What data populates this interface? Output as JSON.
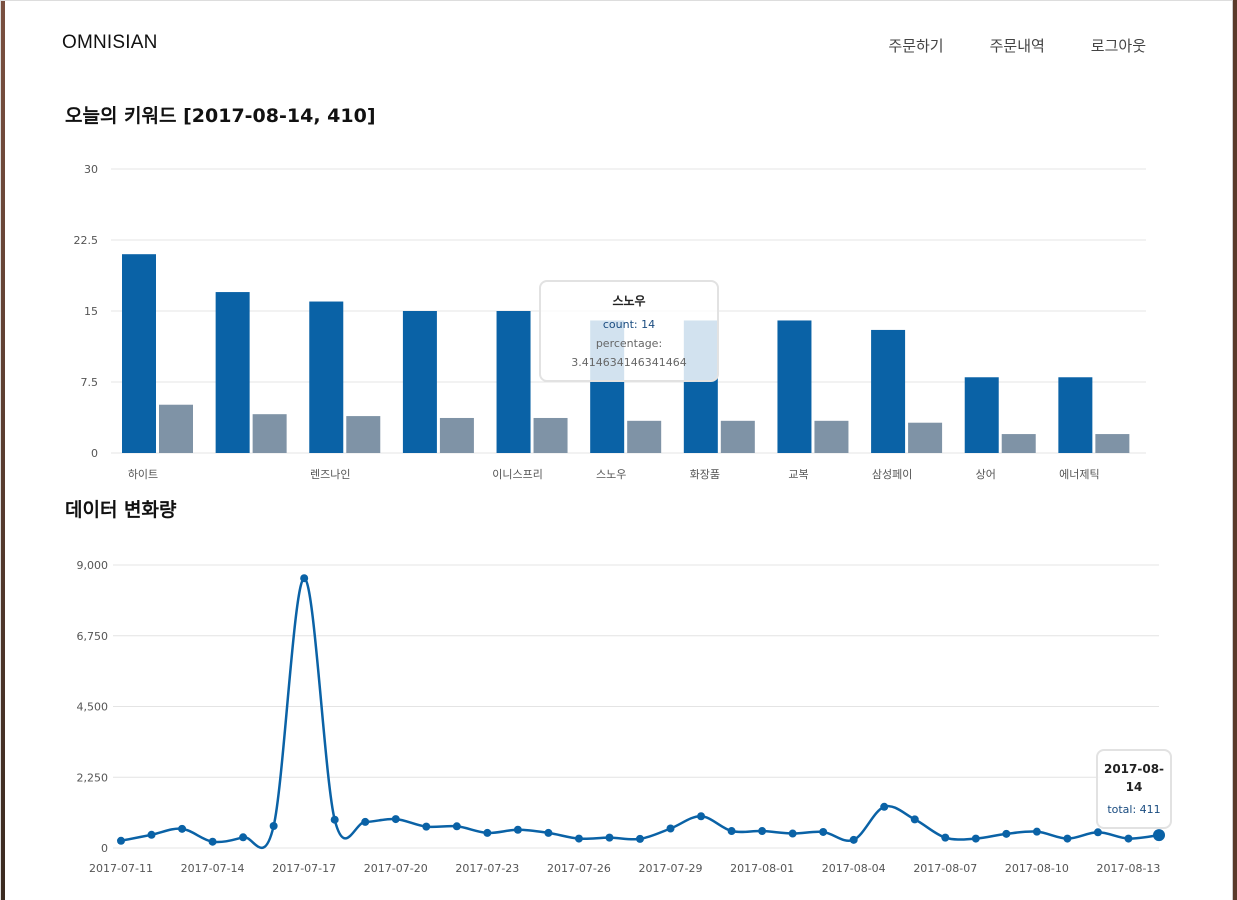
{
  "header": {
    "brand": "OMNISIAN",
    "nav": [
      "주문하기",
      "주문내역",
      "로그아웃"
    ]
  },
  "keywords": {
    "title": "오늘의 키워드 [2017-08-14, 410]",
    "tooltip": {
      "title": "스노우",
      "count": "count: 14",
      "percentage": "percentage: 3.414634146341464"
    }
  },
  "volume": {
    "title": "데이터 변화량",
    "tooltip": {
      "title": "2017-08-14",
      "total": "total: 411"
    }
  },
  "colors": {
    "primary": "#0a62a6",
    "secondary": "#7f93a6",
    "grid": "#e4e4e4"
  },
  "chart_data": [
    {
      "type": "bar",
      "categories": [
        "하이트",
        "",
        "렌즈나인",
        "",
        "이니스프리",
        "스노우",
        "화장품",
        "교복",
        "삼성페이",
        "상어",
        "에너제틱"
      ],
      "series": [
        {
          "values": [
            21,
            17,
            16,
            15,
            15,
            14,
            14,
            14,
            13,
            8,
            8
          ]
        },
        {
          "values": [
            5.1,
            4.1,
            3.9,
            3.7,
            3.7,
            3.4,
            3.4,
            3.4,
            3.2,
            2.0,
            2.0
          ]
        }
      ],
      "yticks": [
        "0",
        "7.5",
        "15",
        "22.5",
        "30"
      ],
      "ylim": [
        0,
        30
      ],
      "grid": true
    },
    {
      "type": "line",
      "x_ticks": [
        "2017-07-11",
        "2017-07-14",
        "2017-07-17",
        "2017-07-20",
        "2017-07-23",
        "2017-07-26",
        "2017-07-29",
        "2017-08-01",
        "2017-08-04",
        "2017-08-07",
        "2017-08-10",
        "2017-08-13"
      ],
      "values": [
        230,
        420,
        610,
        200,
        340,
        700,
        8580,
        900,
        830,
        920,
        680,
        690,
        480,
        580,
        480,
        300,
        330,
        290,
        620,
        1010,
        540,
        540,
        460,
        510,
        260,
        1310,
        910,
        330,
        300,
        450,
        520,
        300,
        500,
        300,
        411
      ],
      "yticks": [
        "0",
        "2,250",
        "4,500",
        "6,750",
        "9,000"
      ],
      "ylim": [
        0,
        9000
      ],
      "grid": true
    }
  ]
}
